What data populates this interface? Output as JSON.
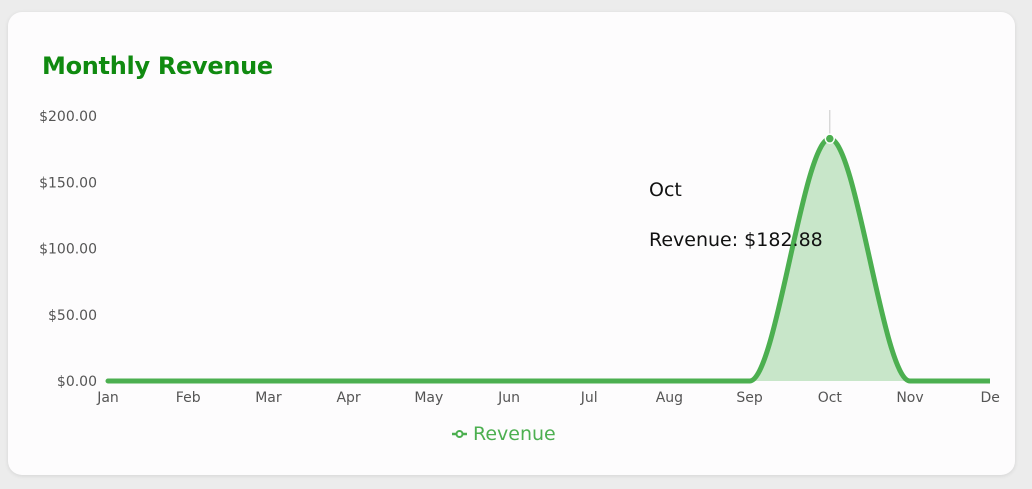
{
  "card": {
    "title": "Monthly Revenue"
  },
  "colors": {
    "title": "#108a10",
    "series_line": "#4caf50",
    "series_fill": "#c8e6c9"
  },
  "chart_data": {
    "type": "area",
    "title": "Monthly Revenue",
    "categories": [
      "Jan",
      "Feb",
      "Mar",
      "Apr",
      "May",
      "Jun",
      "Jul",
      "Aug",
      "Sep",
      "Oct",
      "Nov",
      "De"
    ],
    "series": [
      {
        "name": "Revenue",
        "values": [
          0,
          0,
          0,
          0,
          0,
          0,
          0,
          0,
          0,
          182.88,
          0,
          0
        ]
      }
    ],
    "y_ticks": [
      "$0.00",
      "$50.00",
      "$100.00",
      "$150.00",
      "$200.00"
    ],
    "ylim": [
      0,
      200
    ],
    "xlabel": "",
    "ylabel": "",
    "grid": false,
    "legend_position": "bottom-center",
    "tooltip": {
      "category": "Oct",
      "label": "Revenue: $182.88"
    }
  }
}
